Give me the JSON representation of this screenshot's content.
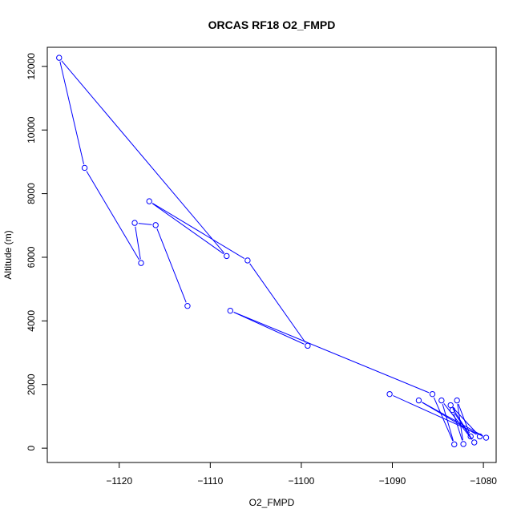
{
  "chart_data": {
    "type": "line",
    "title": "ORCAS RF18 O2_FMPD",
    "xlabel": "O2_FMPD",
    "ylabel": "Altitude (m)",
    "xlim": [
      -1127.9,
      -1078.6
    ],
    "ylim": [
      -450,
      12600
    ],
    "x_ticks": [
      -1120,
      -1110,
      -1100,
      -1090,
      -1080
    ],
    "y_ticks": [
      0,
      2000,
      4000,
      6000,
      8000,
      10000,
      12000
    ],
    "grid": false,
    "legend": "none",
    "line_color": "#0000ff",
    "marker": "open-circle",
    "points": [
      {
        "x": -1112.5,
        "y": 4470
      },
      {
        "x": -1116.0,
        "y": 7010
      },
      {
        "x": -1118.3,
        "y": 7080
      },
      {
        "x": -1117.6,
        "y": 5820
      },
      {
        "x": -1123.8,
        "y": 8810
      },
      {
        "x": -1126.6,
        "y": 12270
      },
      {
        "x": -1108.2,
        "y": 6040
      },
      {
        "x": -1116.7,
        "y": 7760
      },
      {
        "x": -1105.9,
        "y": 5900
      },
      {
        "x": -1099.3,
        "y": 3220
      },
      {
        "x": -1107.8,
        "y": 4320
      },
      {
        "x": -1085.6,
        "y": 1700
      },
      {
        "x": -1083.2,
        "y": 120
      },
      {
        "x": -1084.6,
        "y": 1500
      },
      {
        "x": -1081.0,
        "y": 180
      },
      {
        "x": -1083.4,
        "y": 1200
      },
      {
        "x": -1082.2,
        "y": 130
      },
      {
        "x": -1082.9,
        "y": 1500
      },
      {
        "x": -1081.4,
        "y": 370
      },
      {
        "x": -1083.6,
        "y": 1350
      },
      {
        "x": -1080.4,
        "y": 370
      },
      {
        "x": -1087.1,
        "y": 1500
      },
      {
        "x": -1079.7,
        "y": 330
      },
      {
        "x": -1090.3,
        "y": 1700
      }
    ]
  }
}
